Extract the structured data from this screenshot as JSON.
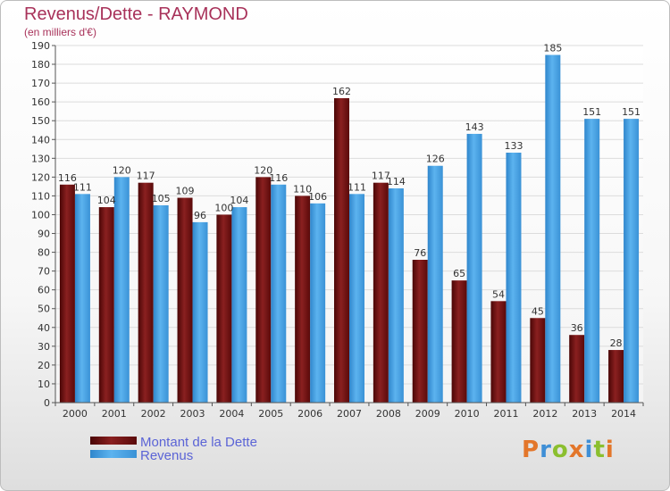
{
  "header": {
    "title": "Revenus/Dette - RAYMOND",
    "subtitle": "(en milliers d'€)"
  },
  "chart_data": {
    "type": "bar",
    "title": "Revenus/Dette - RAYMOND",
    "ylabel": "(en milliers d'€)",
    "ylim": [
      0,
      190
    ],
    "yticks": [
      0,
      10,
      20,
      30,
      40,
      50,
      60,
      70,
      80,
      90,
      100,
      110,
      120,
      130,
      140,
      150,
      160,
      170,
      180,
      190
    ],
    "grid": true,
    "legend_position": "bottom",
    "categories": [
      "2000",
      "2001",
      "2002",
      "2003",
      "2004",
      "2005",
      "2006",
      "2007",
      "2008",
      "2009",
      "2010",
      "2011",
      "2012",
      "2013",
      "2014"
    ],
    "series": [
      {
        "name": "Montant de la Dette",
        "color": "#7a1414",
        "values": [
          116,
          104,
          117,
          109,
          100,
          120,
          110,
          162,
          117,
          76,
          65,
          54,
          45,
          36,
          28
        ]
      },
      {
        "name": "Revenus",
        "color": "#4aa3e3",
        "values": [
          111,
          120,
          105,
          96,
          104,
          116,
          106,
          111,
          114,
          126,
          143,
          133,
          185,
          151,
          151
        ]
      }
    ]
  },
  "logo": {
    "text": "Proxiti",
    "letters": [
      "P",
      "r",
      "o",
      "x",
      "i",
      "t",
      "i"
    ],
    "colors": [
      "#e3762a",
      "#3f8fd6",
      "#8bbf2f",
      "#e3762a",
      "#3f8fd6",
      "#8bbf2f",
      "#e3762a"
    ]
  }
}
